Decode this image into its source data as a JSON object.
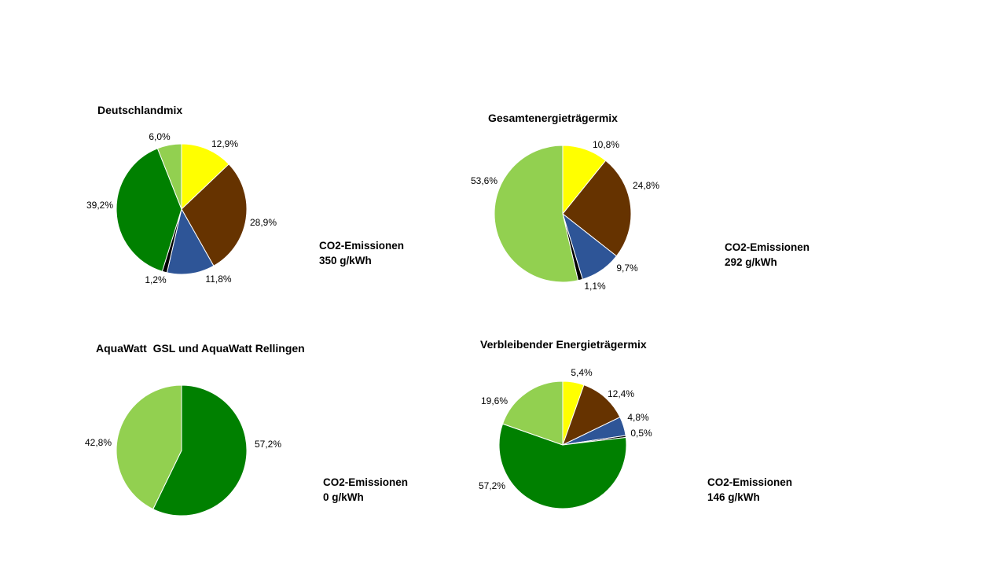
{
  "colors": {
    "yellow": "#ffff00",
    "brown": "#663300",
    "blue": "#2e5597",
    "black": "#000000",
    "dark_green": "#008000",
    "light_green": "#92d050"
  },
  "chart_data": [
    {
      "type": "pie",
      "title": "Deutschlandmix",
      "slices": [
        {
          "value": 12.9,
          "label": "12,9%",
          "color": "#ffff00"
        },
        {
          "value": 28.9,
          "label": "28,9%",
          "color": "#663300"
        },
        {
          "value": 11.8,
          "label": "11,8%",
          "color": "#2e5597"
        },
        {
          "value": 1.2,
          "label": "1,2%",
          "color": "#000000"
        },
        {
          "value": 39.2,
          "label": "39,2%",
          "color": "#008000"
        },
        {
          "value": 6.0,
          "label": "6,0%",
          "color": "#92d050"
        }
      ],
      "co2_label": "CO2-Emissionen",
      "co2_value": "350 g/kWh"
    },
    {
      "type": "pie",
      "title": "Gesamtenergieträgermix",
      "slices": [
        {
          "value": 10.8,
          "label": "10,8%",
          "color": "#ffff00"
        },
        {
          "value": 24.8,
          "label": "24,8%",
          "color": "#663300"
        },
        {
          "value": 9.7,
          "label": "9,7%",
          "color": "#2e5597"
        },
        {
          "value": 1.1,
          "label": "1,1%",
          "color": "#000000"
        },
        {
          "value": 53.6,
          "label": "53,6%",
          "color": "#92d050"
        }
      ],
      "co2_label": "CO2-Emissionen",
      "co2_value": "292 g/kWh"
    },
    {
      "type": "pie",
      "title": "AquaWatt  GSL und AquaWatt Rellingen",
      "slices": [
        {
          "value": 57.2,
          "label": "57,2%",
          "color": "#008000"
        },
        {
          "value": 42.8,
          "label": "42,8%",
          "color": "#92d050"
        }
      ],
      "co2_label": "CO2-Emissionen",
      "co2_value": "0 g/kWh"
    },
    {
      "type": "pie",
      "title": "Verbleibender Energieträgermix",
      "slices": [
        {
          "value": 5.4,
          "label": "5,4%",
          "color": "#ffff00"
        },
        {
          "value": 12.4,
          "label": "12,4%",
          "color": "#663300"
        },
        {
          "value": 4.8,
          "label": "4,8%",
          "color": "#2e5597"
        },
        {
          "value": 0.5,
          "label": "0,5%",
          "color": "#000000"
        },
        {
          "value": 57.2,
          "label": "57,2%",
          "color": "#008000"
        },
        {
          "value": 19.6,
          "label": "19,6%",
          "color": "#92d050"
        }
      ],
      "co2_label": "CO2-Emissionen",
      "co2_value": "146 g/kWh"
    }
  ]
}
